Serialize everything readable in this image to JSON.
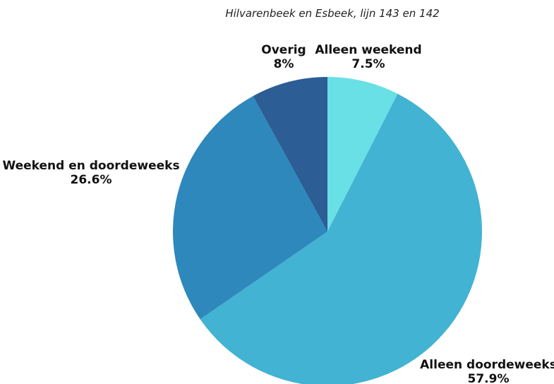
{
  "chart_data": {
    "type": "pie",
    "title": "",
    "subtitle": "Hilvarenbeek en Esbeek, lijn 143 en 142",
    "slices": [
      {
        "label": "Alleen weekend",
        "value_text": "7.5%",
        "value": 7.5,
        "color": "#68E0E6"
      },
      {
        "label": "Alleen doordeweeks",
        "value_text": "57.9%",
        "value": 57.9,
        "color": "#42B3D2"
      },
      {
        "label": "Weekend en doordeweeks",
        "value_text": "26.6%",
        "value": 26.6,
        "color": "#2E88BB"
      },
      {
        "label": "Overig",
        "value_text": "8%",
        "value": 8,
        "color": "#2C5D95"
      }
    ],
    "legend": "none"
  }
}
